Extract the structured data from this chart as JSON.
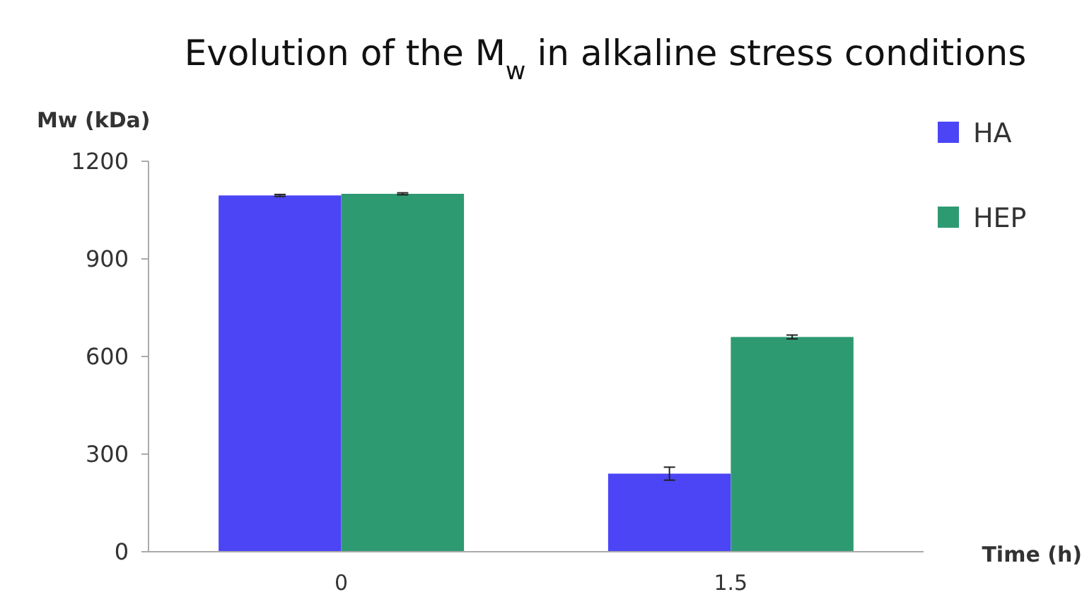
{
  "chart_data": {
    "type": "bar",
    "title": "Evolution of the M$_{w}$ in alkaline stress conditions",
    "ylabel": "Mw (kDa)",
    "xlabel": "Time (h)",
    "categories": [
      "0",
      "1.5"
    ],
    "series": [
      {
        "name": "HA",
        "color": "#4b45f5",
        "values": [
          1095,
          240
        ],
        "errors": [
          3,
          20
        ]
      },
      {
        "name": "HEP",
        "color": "#2e9a72",
        "values": [
          1100,
          660
        ],
        "errors": [
          3,
          6
        ]
      }
    ],
    "ylim": [
      0,
      1200
    ],
    "yticks": [
      0,
      300,
      600,
      900,
      1200
    ],
    "grid": false,
    "legend": "top right"
  }
}
